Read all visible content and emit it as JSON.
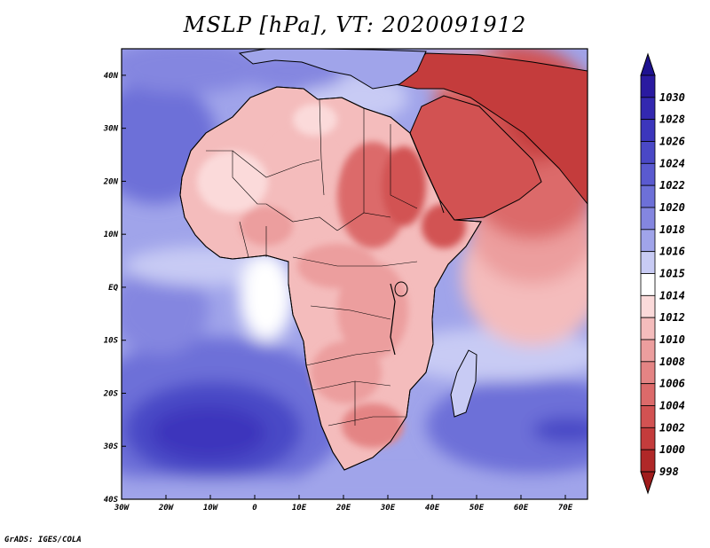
{
  "title": "MSLP [hPa], VT: 2020091912",
  "credit": "GrADS: IGES/COLA",
  "map": {
    "lon_range": [
      -30,
      75
    ],
    "lat_range": [
      -40,
      45
    ],
    "lat_labels": [
      {
        "lat": 40,
        "text": "40N"
      },
      {
        "lat": 30,
        "text": "30N"
      },
      {
        "lat": 20,
        "text": "20N"
      },
      {
        "lat": 10,
        "text": "10N"
      },
      {
        "lat": 0,
        "text": "EQ"
      },
      {
        "lat": -10,
        "text": "10S"
      },
      {
        "lat": -20,
        "text": "20S"
      },
      {
        "lat": -30,
        "text": "30S"
      },
      {
        "lat": -40,
        "text": "40S"
      }
    ],
    "lon_labels": [
      {
        "lon": -30,
        "text": "30W"
      },
      {
        "lon": -20,
        "text": "20W"
      },
      {
        "lon": -10,
        "text": "10W"
      },
      {
        "lon": 0,
        "text": "0"
      },
      {
        "lon": 10,
        "text": "10E"
      },
      {
        "lon": 20,
        "text": "20E"
      },
      {
        "lon": 30,
        "text": "30E"
      },
      {
        "lon": 40,
        "text": "40E"
      },
      {
        "lon": 50,
        "text": "50E"
      },
      {
        "lon": 60,
        "text": "60E"
      },
      {
        "lon": 70,
        "text": "70E"
      }
    ]
  },
  "colorbar": {
    "levels": [
      {
        "label": "1030",
        "color": "#2a1aa0"
      },
      {
        "label": "1028",
        "color": "#3328b0"
      },
      {
        "label": "1026",
        "color": "#3c36bc"
      },
      {
        "label": "1024",
        "color": "#4a48c6"
      },
      {
        "label": "1022",
        "color": "#5a5ad0"
      },
      {
        "label": "1020",
        "color": "#6d70d8"
      },
      {
        "label": "1018",
        "color": "#8486e0"
      },
      {
        "label": "1016",
        "color": "#a0a4ea"
      },
      {
        "label": "1015",
        "color": "#c8cbf4"
      },
      {
        "label": "1014",
        "color": "#ffffff"
      },
      {
        "label": "1012",
        "color": "#fbdada"
      },
      {
        "label": "1010",
        "color": "#f4bcbc"
      },
      {
        "label": "1008",
        "color": "#ec9e9e"
      },
      {
        "label": "1006",
        "color": "#e48484"
      },
      {
        "label": "1004",
        "color": "#dc6a6a"
      },
      {
        "label": "1002",
        "color": "#d25252"
      },
      {
        "label": "1000",
        "color": "#c43c3c"
      },
      {
        "label": "998",
        "color": "#b02828"
      }
    ],
    "top_arrow_color": "#1e1290",
    "bottom_arrow_color": "#a01c1c"
  },
  "colors": {
    "ocean_high": "#6d70d8",
    "ocean_very_high": "#3c36bc",
    "ocean_mid": "#a0a4ea",
    "ocean_light": "#c8cbf4",
    "land_low": "#ec9e9e",
    "land_vlow": "#d25252",
    "land_mild": "#f4bcbc",
    "land_pale": "#fbdada",
    "coast": "#000000"
  }
}
